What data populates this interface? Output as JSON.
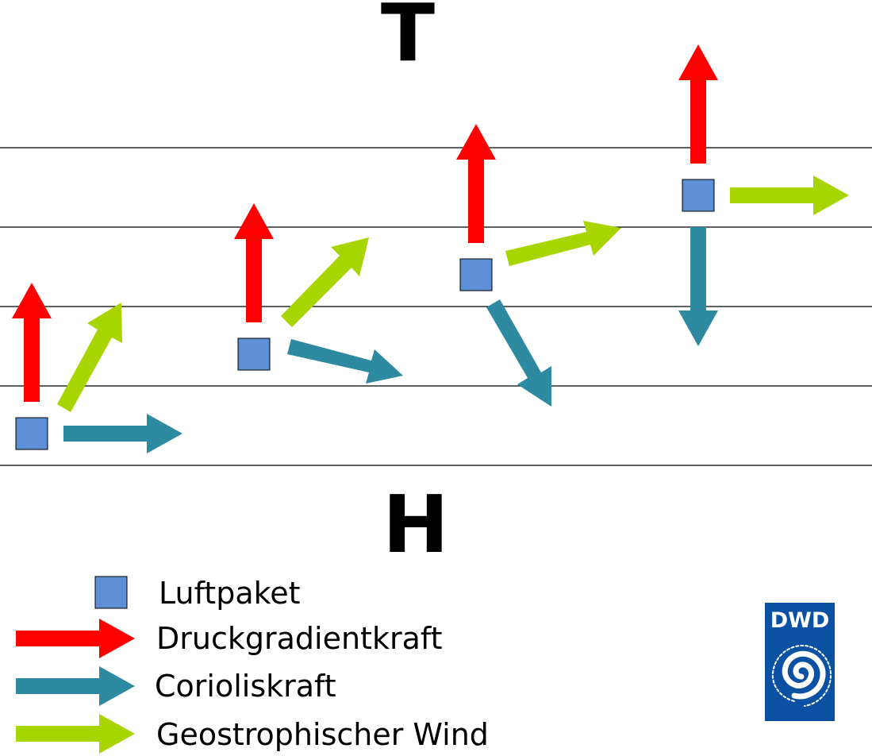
{
  "labels": {
    "low_pressure": "T",
    "high_pressure": "H"
  },
  "legend": {
    "parcel": "Luftpaket",
    "pressure_gradient_force": "Druckgradientkraft",
    "coriolis_force": "Corioliskraft",
    "geostrophic_wind": "Geostrophischer Wind"
  },
  "logo": {
    "text": "DWD"
  },
  "colors": {
    "pressure_gradient_force": "#ff0000",
    "coriolis_force": "#2e8aa0",
    "geostrophic_wind": "#a8d400",
    "parcel": "#5e8ed6",
    "isobar": "#000000",
    "logo_background": "#0b51a3"
  },
  "stages": [
    {
      "name": "stage-1",
      "wind_direction_deg": 60
    },
    {
      "name": "stage-2",
      "wind_direction_deg": 45
    },
    {
      "name": "stage-3",
      "wind_direction_deg": 15
    },
    {
      "name": "stage-4",
      "wind_direction_deg": 0
    }
  ]
}
